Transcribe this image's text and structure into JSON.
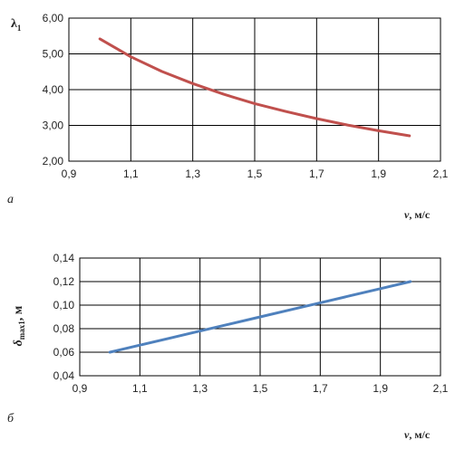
{
  "chart_data": [
    {
      "type": "line",
      "panel_label": "а",
      "ylabel": "λ",
      "ylabel_sub": "1",
      "xlabel_var": "v",
      "xlabel_unit": ", м/с",
      "xlim": [
        0.9,
        2.1
      ],
      "ylim": [
        2.0,
        6.0
      ],
      "x_ticks": [
        "0,9",
        "1,1",
        "1,3",
        "1,5",
        "1,7",
        "1,9",
        "2,1"
      ],
      "y_ticks": [
        "2,00",
        "3,00",
        "4,00",
        "5,00",
        "6,00"
      ],
      "grid": true,
      "color": "#c0504d",
      "series": [
        {
          "x": [
            1.0,
            1.1,
            1.2,
            1.3,
            1.4,
            1.5,
            1.6,
            1.7,
            1.8,
            1.9,
            2.0
          ],
          "values": [
            5.42,
            4.92,
            4.51,
            4.17,
            3.87,
            3.61,
            3.39,
            3.19,
            3.01,
            2.85,
            2.71
          ]
        }
      ]
    },
    {
      "type": "line",
      "panel_label": "б",
      "ylabel": "δ",
      "ylabel_sub": "max1",
      "ylabel_unit": ", м",
      "xlabel_var": "v",
      "xlabel_unit": ", м/с",
      "xlim": [
        0.9,
        2.1
      ],
      "ylim": [
        0.04,
        0.14
      ],
      "x_ticks": [
        "0,9",
        "1,1",
        "1,3",
        "1,5",
        "1,7",
        "1,9",
        "2,1"
      ],
      "y_ticks": [
        "0,04",
        "0,06",
        "0,08",
        "0,10",
        "0,12",
        "0,14"
      ],
      "grid": true,
      "color": "#4f81bd",
      "series": [
        {
          "x": [
            1.0,
            1.1,
            1.2,
            1.3,
            1.4,
            1.5,
            1.6,
            1.7,
            1.8,
            1.9,
            2.0
          ],
          "values": [
            0.06,
            0.066,
            0.072,
            0.078,
            0.084,
            0.09,
            0.096,
            0.102,
            0.108,
            0.114,
            0.12
          ]
        }
      ]
    }
  ]
}
